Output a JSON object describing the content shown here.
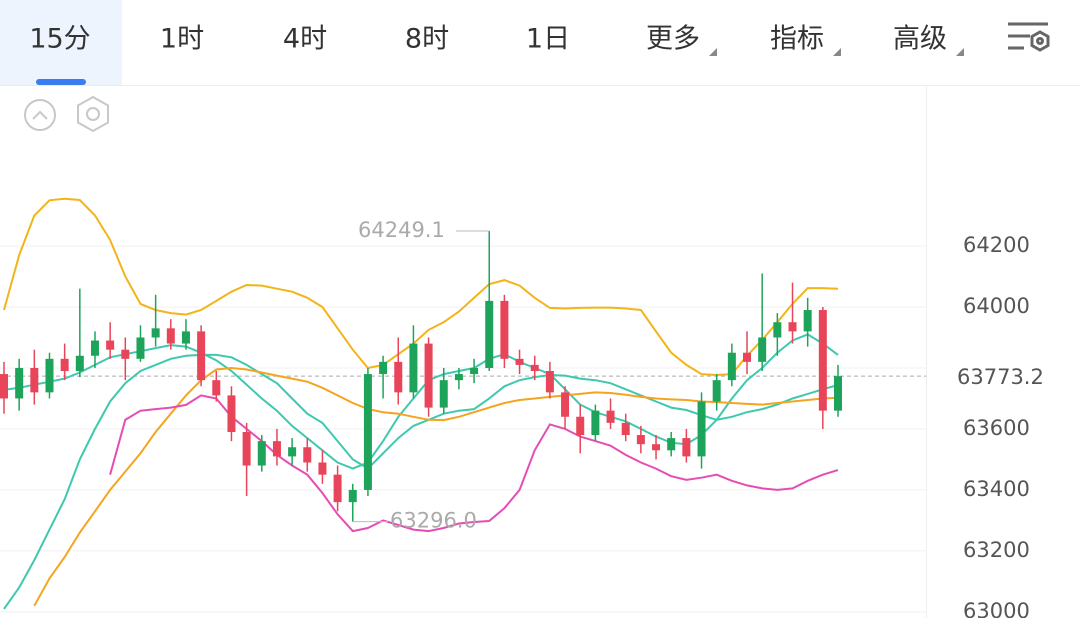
{
  "tabs": [
    "15分",
    "1时",
    "4时",
    "8时",
    "1日",
    "更多",
    "指标",
    "高级"
  ],
  "active_tab": 0,
  "chart_data": {
    "type": "candlestick",
    "ylim": [
      62980,
      64728
    ],
    "yticks": [
      63000,
      63200,
      63400,
      63600,
      63800,
      64000,
      64200
    ],
    "ytick_labels_shown": [
      63000,
      63200,
      63400,
      63600,
      64000,
      64200
    ],
    "grid": true,
    "up_color": "#1ea45a",
    "down_color": "#e8455a",
    "open": [
      63780,
      63700,
      63800,
      63720,
      63830,
      63790,
      63840,
      63890,
      63860,
      63830,
      63900,
      63930,
      63880,
      63920,
      63760,
      63710,
      63590,
      63480,
      63560,
      63510,
      63540,
      63490,
      63450,
      63360,
      63400,
      63780,
      63820,
      63720,
      63880,
      63670,
      63760,
      63780,
      63800,
      64020,
      63830,
      63810,
      63790,
      63720,
      63640,
      63580,
      63660,
      63620,
      63580,
      63550,
      63530,
      63570,
      63510,
      63690,
      63760,
      63850,
      63820,
      63900,
      63950,
      63920,
      63990,
      63660
    ],
    "high": [
      63820,
      63830,
      63860,
      63850,
      63880,
      64060,
      63920,
      63950,
      63900,
      63940,
      64040,
      63960,
      63960,
      63940,
      63790,
      63740,
      63620,
      63580,
      63600,
      63570,
      63570,
      63530,
      63480,
      63420,
      63800,
      63840,
      63900,
      63940,
      63900,
      63800,
      63800,
      63830,
      64249.1,
      64040,
      63860,
      63840,
      63820,
      63740,
      63680,
      63680,
      63700,
      63650,
      63610,
      63580,
      63590,
      63600,
      63720,
      63780,
      63880,
      63920,
      64110,
      63980,
      64080,
      64030,
      64000,
      63810
    ],
    "low": [
      63650,
      63660,
      63680,
      63700,
      63760,
      63770,
      63800,
      63830,
      63760,
      63820,
      63870,
      63860,
      63860,
      63740,
      63690,
      63560,
      63380,
      63460,
      63480,
      63480,
      63460,
      63420,
      63330,
      63296,
      63380,
      63700,
      63680,
      63700,
      63640,
      63650,
      63730,
      63750,
      63790,
      63800,
      63780,
      63760,
      63700,
      63600,
      63520,
      63560,
      63600,
      63560,
      63520,
      63500,
      63510,
      63490,
      63470,
      63660,
      63740,
      63780,
      63790,
      63840,
      63880,
      63870,
      63600,
      63640
    ],
    "close": [
      63700,
      63800,
      63720,
      63830,
      63790,
      63840,
      63890,
      63860,
      63830,
      63900,
      63930,
      63880,
      63920,
      63760,
      63710,
      63590,
      63480,
      63560,
      63510,
      63540,
      63490,
      63450,
      63360,
      63400,
      63780,
      63820,
      63720,
      63880,
      63670,
      63760,
      63780,
      63800,
      64020,
      63830,
      63810,
      63790,
      63720,
      63640,
      63580,
      63660,
      63620,
      63580,
      63550,
      63530,
      63570,
      63510,
      63690,
      63760,
      63850,
      63820,
      63900,
      63950,
      63920,
      63990,
      63660,
      63773.2
    ],
    "lines": [
      {
        "color": "#3ec8ae",
        "values": [
          63728,
          63735,
          63745,
          63755,
          63765,
          63785,
          63810,
          63835,
          63845,
          63855,
          63865,
          63875,
          63870,
          63850,
          63825,
          63790,
          63745,
          63700,
          63660,
          63610,
          63570,
          63530,
          63490,
          63470,
          63490,
          63560,
          63640,
          63700,
          63760,
          63780,
          63790,
          63800,
          63830,
          63845,
          63820,
          63800,
          63780,
          63730,
          63680,
          63655,
          63640,
          63625,
          63600,
          63575,
          63555,
          63550,
          63580,
          63630,
          63700,
          63760,
          63800,
          63850,
          63890,
          63910,
          63880,
          63843
        ]
      },
      {
        "color": "#3ec8ae",
        "values": [
          63010,
          63080,
          63170,
          63270,
          63370,
          63500,
          63600,
          63690,
          63750,
          63790,
          63810,
          63830,
          63840,
          63843,
          63843,
          63835,
          63810,
          63780,
          63750,
          63700,
          63650,
          63620,
          63560,
          63500,
          63470,
          63520,
          63570,
          63610,
          63630,
          63650,
          63660,
          63665,
          63700,
          63740,
          63760,
          63770,
          63777,
          63775,
          63765,
          63760,
          63750,
          63730,
          63710,
          63690,
          63670,
          63662,
          63645,
          63630,
          63640,
          63655,
          63665,
          63680,
          63700,
          63715,
          63730,
          63744
        ]
      },
      {
        "color": "#f5a41e",
        "values": [
          null,
          null,
          63020,
          63110,
          63180,
          63260,
          63330,
          63400,
          63460,
          63520,
          63590,
          63650,
          63710,
          63760,
          63795,
          63800,
          63795,
          63785,
          63775,
          63765,
          63755,
          63735,
          63710,
          63685,
          63665,
          63655,
          63650,
          63640,
          63630,
          63629,
          63640,
          63655,
          63670,
          63685,
          63695,
          63700,
          63705,
          63710,
          63715,
          63720,
          63718,
          63712,
          63705,
          63700,
          63697,
          63695,
          63690,
          63688,
          63685,
          63682,
          63680,
          63685,
          63690,
          63695,
          63700,
          63702
        ]
      },
      {
        "color": "#f2b419",
        "values": [
          63990,
          64170,
          64300,
          64350,
          64355,
          64351,
          64300,
          64220,
          64100,
          64010,
          63990,
          63980,
          63975,
          63990,
          64020,
          64050,
          64072,
          64070,
          64060,
          64050,
          64030,
          64000,
          63930,
          63860,
          63800,
          63810,
          63845,
          63880,
          63925,
          63950,
          63985,
          64030,
          64075,
          64088,
          64070,
          64030,
          63997,
          63995,
          63997,
          63998,
          63998,
          63995,
          63990,
          63920,
          63850,
          63810,
          63780,
          63777,
          63780,
          63840,
          63892,
          63950,
          64010,
          64062,
          64062,
          64060
        ]
      },
      {
        "color": "#e54db4",
        "values": [
          null,
          null,
          null,
          null,
          null,
          null,
          null,
          63450,
          63630,
          63660,
          63665,
          63670,
          63679,
          63710,
          63700,
          63640,
          63600,
          63560,
          63515,
          63480,
          63450,
          63390,
          63320,
          63265,
          63275,
          63300,
          63285,
          63270,
          63265,
          63275,
          63290,
          63295,
          63298,
          63340,
          63400,
          63530,
          63615,
          63600,
          63575,
          63560,
          63545,
          63515,
          63490,
          63470,
          63445,
          63433,
          63440,
          63450,
          63430,
          63415,
          63405,
          63400,
          63405,
          63430,
          63450,
          63465
        ]
      }
    ],
    "annotations": {
      "high": 64249.1,
      "low": {
        "value": 63296,
        "label": "63296.0"
      }
    },
    "last_price": 63773.2,
    "last_price_color": "#e8455a"
  }
}
